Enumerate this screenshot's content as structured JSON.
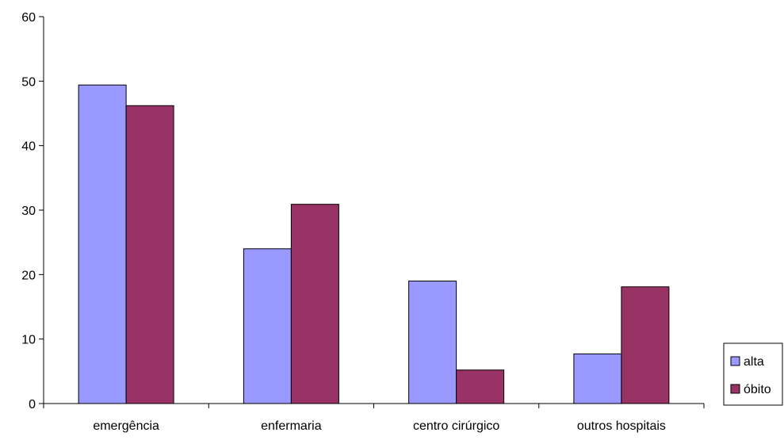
{
  "chart_data": {
    "type": "bar",
    "categories": [
      "emergência",
      "enfermaria",
      "centro cirúrgico",
      "outros hospitais"
    ],
    "series": [
      {
        "name": "alta",
        "values": [
          49.4,
          24.0,
          19.0,
          7.7
        ],
        "color": "#9999ff"
      },
      {
        "name": "óbito",
        "values": [
          46.2,
          30.9,
          5.2,
          18.1
        ],
        "color": "#993366"
      }
    ],
    "ylim": [
      0,
      60
    ],
    "yticks": [
      0,
      10,
      20,
      30,
      40,
      50,
      60
    ],
    "title": "",
    "xlabel": "",
    "ylabel": "",
    "grid": false,
    "legend_position": "right"
  }
}
